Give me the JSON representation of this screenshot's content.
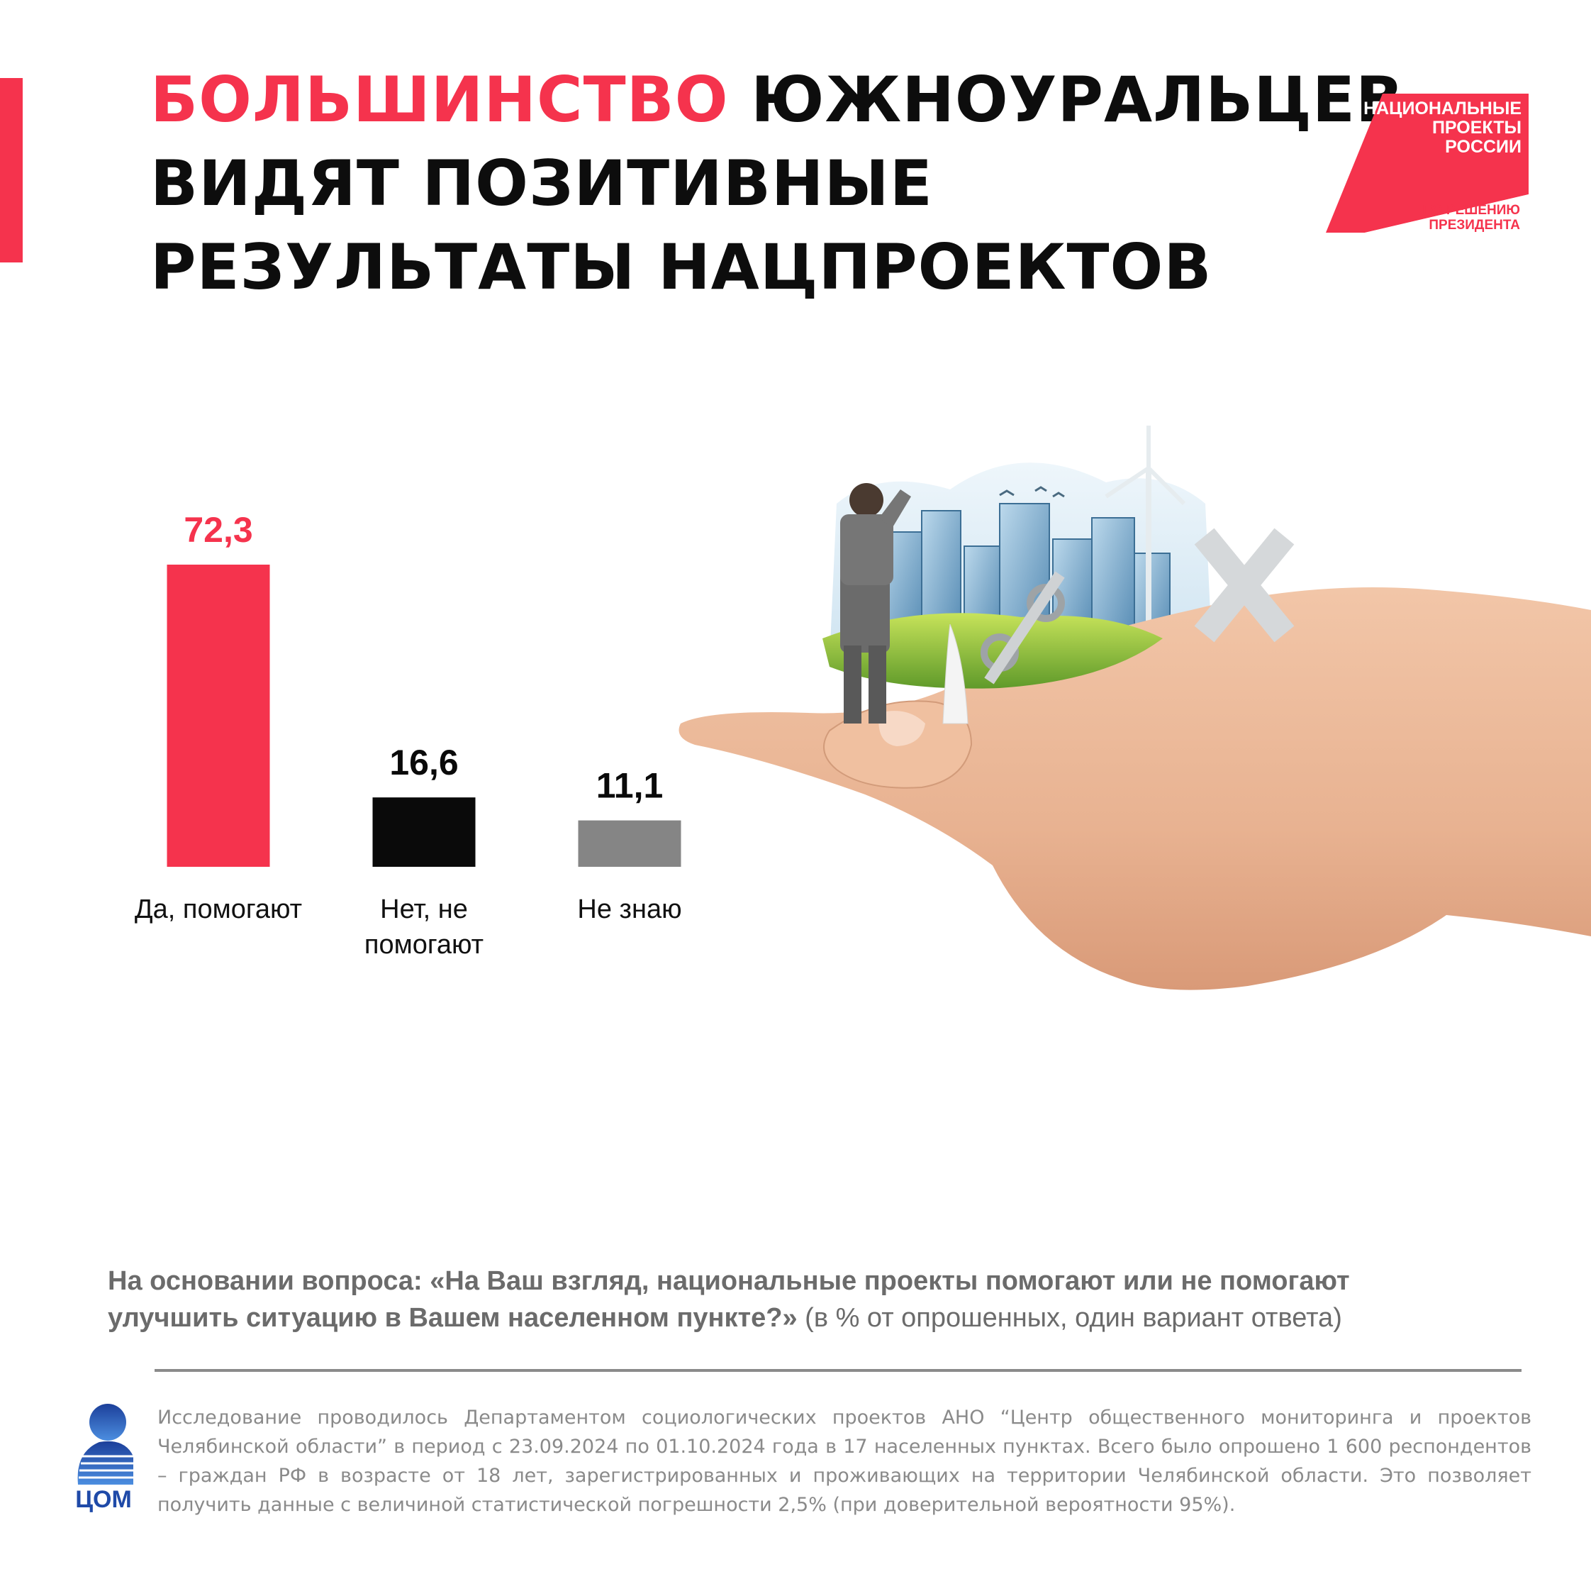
{
  "colors": {
    "accent": "#f5334d",
    "black": "#0a0a0a",
    "gray": "#858585",
    "text_gray": "#6b6b6b",
    "com_blue": "#1f4aa8"
  },
  "header": {
    "title_highlight": "БОЛЬШИНСТВО",
    "title_rest_1": " ЮЖНОУРАЛЬЦЕВ",
    "title_line_2": "ВИДЯТ ПОЗИТИВНЫЕ",
    "title_line_3": "РЕЗУЛЬТАТЫ НАЦПРОЕКТОВ"
  },
  "np_logo": {
    "line1": "НАЦИОНАЛЬНЫЕ",
    "line2": "ПРОЕКТЫ",
    "line3": "РОССИИ",
    "sub1": "ПО РЕШЕНИЮ",
    "sub2": "ПРЕЗИДЕНТА"
  },
  "chart_data": {
    "type": "bar",
    "categories": [
      "Да, помогают",
      "Нет, не помогают",
      "Не знаю"
    ],
    "category_lines": [
      [
        "Да, помогают"
      ],
      [
        "Нет, не",
        "помогают"
      ],
      [
        "Не знаю"
      ]
    ],
    "values": [
      72.3,
      16.6,
      11.1
    ],
    "value_labels": [
      "72,3",
      "16,6",
      "11,1"
    ],
    "bar_colors": [
      "#f5334d",
      "#0a0a0a",
      "#858585"
    ],
    "value_label_colors": [
      "#f5334d",
      "#0a0a0a",
      "#0a0a0a"
    ],
    "ylim": [
      0,
      72.3
    ],
    "grid": false,
    "legend": "none"
  },
  "question": {
    "bold": "На основании вопроса: «На Ваш взгляд, национальные проекты помогают или не помогают улучшить ситуацию в Вашем населенном пункте?»",
    "normal": " (в % от опрошенных, один вариант ответа)"
  },
  "footer": {
    "com_logo_text": "ЦОМ",
    "methodology": "Исследование проводилось Департаментом социологических проектов АНО “Центр общественного мониторинга и проектов Челябинской области” в период с 23.09.2024 по 01.10.2024 года в 17 населенных пунктах. Всего было опрошено 1 600 респондентов – граждан РФ в возрасте от 18 лет, зарегистрированных и проживающих на территории Челябинской области. Это позволяет получить данные с величиной статистической погрешности 2,5% (при доверительной вероятности 95%)."
  }
}
